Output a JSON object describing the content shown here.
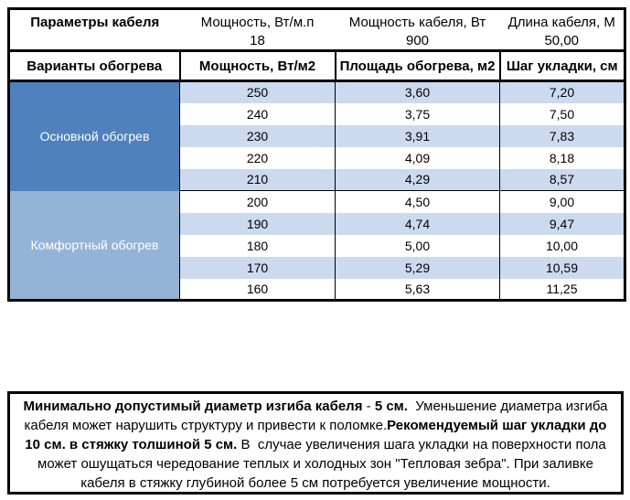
{
  "colors": {
    "main_heating_blue": "#4F81BD",
    "comfort_heating_blue": "#95B3D7",
    "band_row_blue": "#CBDAEE",
    "border_black": "#000000"
  },
  "params": {
    "title": "Параметры кабеля",
    "power_per_meter_label": "Мощность, Вт/м.п",
    "cable_power_label": "Мощность кабеля, Вт",
    "cable_length_label": "Длина кабеля, М",
    "power_per_meter_value": "18",
    "cable_power_value": "900",
    "cable_length_value": "50,00"
  },
  "variants_header": {
    "variants": "Варианты обогрева",
    "power_density": "Мощность, Вт/м2",
    "heating_area": "Площадь обогрева, м2",
    "laying_step": "Шаг укладки, см"
  },
  "sections": [
    {
      "label": "Основной обогрев",
      "rows": [
        {
          "power": "250",
          "area": "3,60",
          "step": "7,20"
        },
        {
          "power": "240",
          "area": "3,75",
          "step": "7,50"
        },
        {
          "power": "230",
          "area": "3,91",
          "step": "7,83"
        },
        {
          "power": "220",
          "area": "4,09",
          "step": "8,18"
        },
        {
          "power": "210",
          "area": "4,29",
          "step": "8,57"
        }
      ]
    },
    {
      "label": "Комфортный обогрев",
      "rows": [
        {
          "power": "200",
          "area": "4,50",
          "step": "9,00"
        },
        {
          "power": "190",
          "area": "4,74",
          "step": "9,47"
        },
        {
          "power": "180",
          "area": "5,00",
          "step": "10,00"
        },
        {
          "power": "170",
          "area": "5,29",
          "step": "10,59"
        },
        {
          "power": "160",
          "area": "5,63",
          "step": "11,25"
        }
      ]
    }
  ],
  "note": {
    "bold1": "Минимально допустимый диаметр изгиба кабеля",
    "sep1": " - ",
    "bold2": "5 см.",
    "text1": "  Уменьшение диаметра изгиба кабеля может нарушить структуру и привести к поломке.",
    "bold3": "Рекомендуемый шаг укладки до 10 см. в стяжку толшиной 5 см.",
    "text2": " В  случае увеличения шага укладки на поверхности пола может ошущаться чередование теплых и холодных зон \"Тепловая зебра\". При заливке кабеля в стяжку глубиной более 5 см потребуется увеличение мощности."
  }
}
